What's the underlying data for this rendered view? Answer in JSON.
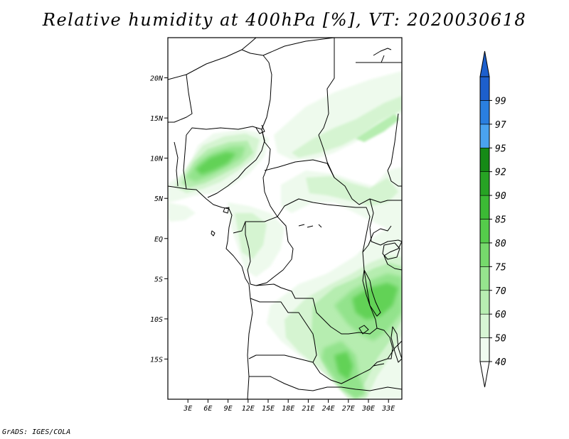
{
  "title": "Relative humidity at 400hPa [%], VT: 2020030618",
  "credit": "GrADS: IGES/COLA",
  "map": {
    "variable": "Relative humidity",
    "level": "400hPa",
    "units": "%",
    "valid_time": "2020030618",
    "lon_range": [
      0,
      35
    ],
    "lat_range": [
      -20,
      25
    ],
    "lat_ticks": [
      {
        "value": 20,
        "label": "20N"
      },
      {
        "value": 15,
        "label": "15N"
      },
      {
        "value": 10,
        "label": "10N"
      },
      {
        "value": 5,
        "label": "5N"
      },
      {
        "value": 0,
        "label": "EQ"
      },
      {
        "value": -5,
        "label": "5S"
      },
      {
        "value": -10,
        "label": "10S"
      },
      {
        "value": -15,
        "label": "15S"
      }
    ],
    "lon_ticks": [
      {
        "value": 3,
        "label": "3E"
      },
      {
        "value": 6,
        "label": "6E"
      },
      {
        "value": 9,
        "label": "9E"
      },
      {
        "value": 12,
        "label": "12E"
      },
      {
        "value": 15,
        "label": "15E"
      },
      {
        "value": 18,
        "label": "18E"
      },
      {
        "value": 21,
        "label": "21E"
      },
      {
        "value": 24,
        "label": "24E"
      },
      {
        "value": 27,
        "label": "27E"
      },
      {
        "value": 30,
        "label": "30E"
      },
      {
        "value": 33,
        "label": "33E"
      }
    ]
  },
  "colorbar": {
    "levels": [
      {
        "label": "40",
        "color": "#f0fbf0"
      },
      {
        "label": "50",
        "color": "#d7f5d4"
      },
      {
        "label": "60",
        "color": "#b8eeb2"
      },
      {
        "label": "70",
        "color": "#96e48e"
      },
      {
        "label": "75",
        "color": "#76d96c"
      },
      {
        "label": "80",
        "color": "#55cc4b"
      },
      {
        "label": "85",
        "color": "#3cba35"
      },
      {
        "label": "90",
        "color": "#27a324"
      },
      {
        "label": "92",
        "color": "#158a16"
      },
      {
        "label": "95",
        "color": "#4aa3f0"
      },
      {
        "label": "97",
        "color": "#2a7fe0"
      },
      {
        "label": "99",
        "color": "#1d5fcc"
      }
    ],
    "top_arrow_color": "#1d5fcc",
    "bottom_arrow_color": "#ffffff"
  }
}
